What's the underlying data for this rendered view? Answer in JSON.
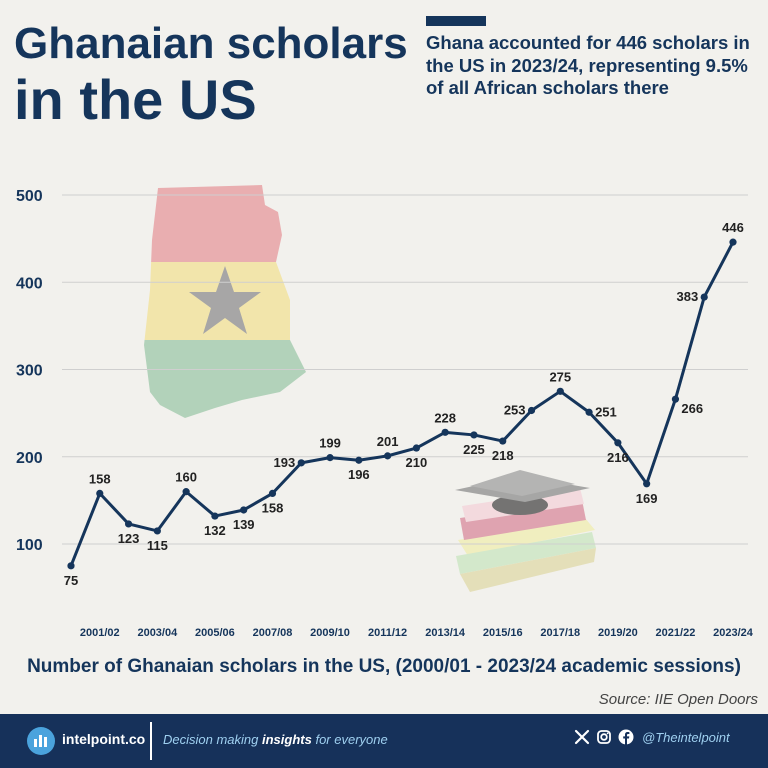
{
  "header": {
    "title_line1": "Ghanaian scholars",
    "title_line2": "in the US",
    "subtitle": "Ghana accounted for 446 scholars in the US in 2023/24, representing 9.5% of all African scholars there"
  },
  "colors": {
    "navy": "#15355b",
    "background": "#f2f1ed",
    "footer": "#16315a",
    "logo_blue": "#4aa3dd",
    "flag_red": "#e8a3a6",
    "flag_yellow": "#f3e3a0",
    "flag_green": "#a8cdb2"
  },
  "chart_data": {
    "type": "line",
    "x": [
      "2000/01",
      "2001/02",
      "2002/03",
      "2003/04",
      "2004/05",
      "2005/06",
      "2006/07",
      "2007/08",
      "2008/09",
      "2009/10",
      "2010/11",
      "2011/12",
      "2012/13",
      "2013/14",
      "2014/15",
      "2015/16",
      "2016/17",
      "2017/18",
      "2018/19",
      "2019/20",
      "2020/21",
      "2021/22",
      "2022/23",
      "2023/24"
    ],
    "values": [
      75,
      158,
      123,
      115,
      160,
      132,
      139,
      158,
      193,
      199,
      196,
      201,
      210,
      228,
      225,
      218,
      253,
      275,
      251,
      216,
      169,
      266,
      383,
      446
    ],
    "x_tick_labels": [
      "2001/02",
      "2003/04",
      "2005/06",
      "2007/08",
      "2009/10",
      "2011/12",
      "2013/14",
      "2015/16",
      "2017/18",
      "2019/20",
      "2021/22",
      "2023/24"
    ],
    "y_ticks": [
      100,
      200,
      300,
      400,
      500
    ],
    "ylim": [
      50,
      515
    ],
    "grid": true,
    "caption": "Number of Ghanaian scholars in the US, (2000/01 - 2023/24 academic sessions)"
  },
  "source": "Source: IIE Open Doors",
  "footer": {
    "brand": "intelpoint.co",
    "tagline_pre": "Decision making ",
    "tagline_bold": "insights",
    "tagline_post": " for everyone",
    "social_icons": [
      "x-icon",
      "instagram-icon",
      "facebook-icon"
    ],
    "handle": "@Theintelpoint"
  }
}
